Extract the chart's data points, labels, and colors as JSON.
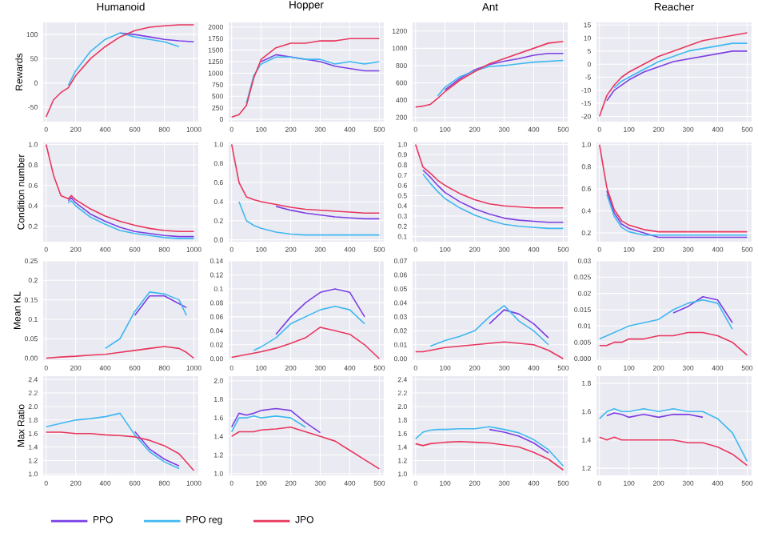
{
  "chart_data": [
    {
      "type": "line",
      "title": "Humanoid",
      "ylabel": "Rewards",
      "grid": true,
      "x": [
        0,
        50,
        100,
        150,
        200,
        300,
        400,
        500,
        600,
        700,
        800,
        900,
        1000
      ],
      "xlim": [
        -20,
        1030
      ],
      "xticks": [
        0,
        200,
        400,
        600,
        800,
        1000
      ],
      "ylim": [
        -80,
        125
      ],
      "yticks": [
        -50,
        0,
        50,
        100
      ],
      "series": [
        {
          "color": "#7b3fe4",
          "values": [
            null,
            null,
            null,
            null,
            null,
            null,
            null,
            103,
            100,
            95,
            90,
            87,
            85
          ]
        },
        {
          "color": "#3fb8f0",
          "values": [
            null,
            null,
            null,
            -5,
            25,
            65,
            90,
            103,
            95,
            90,
            85,
            75,
            null
          ]
        },
        {
          "color": "#e8365d",
          "values": [
            -70,
            -35,
            -20,
            -10,
            15,
            50,
            75,
            95,
            108,
            115,
            118,
            120,
            120
          ]
        }
      ]
    },
    {
      "type": "line",
      "title": "Hopper",
      "grid": true,
      "x": [
        0,
        25,
        50,
        75,
        100,
        150,
        200,
        250,
        300,
        350,
        400,
        450,
        500
      ],
      "xlim": [
        -10,
        515
      ],
      "xticks": [
        0,
        100,
        200,
        300,
        400,
        500
      ],
      "ylim": [
        -50,
        2100
      ],
      "yticks": [
        0,
        250,
        500,
        750,
        1000,
        1250,
        1500,
        1750,
        2000
      ],
      "series": [
        {
          "color": "#7b3fe4",
          "values": [
            null,
            null,
            null,
            null,
            1250,
            1400,
            1350,
            1300,
            1250,
            1150,
            1100,
            1050,
            1050
          ]
        },
        {
          "color": "#3fb8f0",
          "values": [
            null,
            null,
            350,
            950,
            1200,
            1350,
            1350,
            1300,
            1300,
            1200,
            1250,
            1200,
            1250
          ]
        },
        {
          "color": "#e8365d",
          "values": [
            50,
            100,
            300,
            900,
            1300,
            1550,
            1650,
            1650,
            1700,
            1700,
            1750,
            1750,
            1750
          ]
        }
      ]
    },
    {
      "type": "line",
      "title": "Ant",
      "grid": true,
      "x": [
        0,
        25,
        50,
        75,
        100,
        150,
        200,
        250,
        300,
        350,
        400,
        450,
        500
      ],
      "xlim": [
        -10,
        515
      ],
      "xticks": [
        0,
        100,
        200,
        300,
        400,
        500
      ],
      "ylim": [
        150,
        1300
      ],
      "yticks": [
        200,
        400,
        600,
        800,
        1000,
        1200
      ],
      "series": [
        {
          "color": "#7b3fe4",
          "values": [
            null,
            null,
            null,
            null,
            520,
            650,
            750,
            810,
            850,
            880,
            920,
            940,
            940
          ]
        },
        {
          "color": "#3fb8f0",
          "values": [
            null,
            null,
            null,
            450,
            550,
            670,
            740,
            790,
            800,
            820,
            840,
            850,
            860
          ]
        },
        {
          "color": "#e8365d",
          "values": [
            320,
            330,
            350,
            420,
            500,
            630,
            730,
            820,
            880,
            940,
            1000,
            1060,
            1080
          ]
        }
      ]
    },
    {
      "type": "line",
      "title": "Reacher",
      "grid": true,
      "x": [
        0,
        25,
        50,
        75,
        100,
        150,
        200,
        250,
        300,
        350,
        400,
        450,
        500
      ],
      "xlim": [
        -10,
        515
      ],
      "xticks": [
        0,
        100,
        200,
        300,
        400,
        500
      ],
      "ylim": [
        -22,
        16
      ],
      "yticks": [
        -20,
        -15,
        -10,
        -5,
        0,
        5,
        10,
        15
      ],
      "series": [
        {
          "color": "#7b3fe4",
          "values": [
            null,
            -14,
            -10,
            -8,
            -6,
            -3,
            -1,
            1,
            2,
            3,
            4,
            5,
            5
          ]
        },
        {
          "color": "#3fb8f0",
          "values": [
            null,
            null,
            -9,
            -6.5,
            -5,
            -2,
            1,
            3,
            5,
            6,
            7,
            8,
            8
          ]
        },
        {
          "color": "#e8365d",
          "values": [
            -20,
            -12,
            -8,
            -5,
            -3,
            0,
            3,
            5,
            7,
            9,
            10,
            11,
            12
          ]
        }
      ]
    },
    {
      "type": "line",
      "ylabel": "Condition number",
      "grid": true,
      "x": [
        0,
        50,
        100,
        150,
        170,
        200,
        300,
        400,
        500,
        600,
        700,
        800,
        900,
        1000
      ],
      "xlim": [
        -20,
        1030
      ],
      "xticks": [
        0,
        200,
        400,
        600,
        800,
        1000
      ],
      "ylim": [
        0.05,
        1.02
      ],
      "yticks": [
        0.2,
        0.4,
        0.6,
        0.8,
        {
          "value": 1.0,
          "label": "1.0"
        }
      ],
      "series": [
        {
          "color": "#7b3fe4",
          "values": [
            null,
            null,
            null,
            0.45,
            0.48,
            0.43,
            0.32,
            0.25,
            0.19,
            0.15,
            0.13,
            0.11,
            0.1,
            0.1
          ]
        },
        {
          "color": "#3fb8f0",
          "values": [
            null,
            null,
            null,
            0.43,
            0.45,
            0.4,
            0.29,
            0.22,
            0.16,
            0.13,
            0.11,
            0.09,
            0.08,
            0.08
          ]
        },
        {
          "color": "#e8365d",
          "values": [
            1.0,
            0.7,
            0.5,
            0.47,
            0.5,
            0.46,
            0.37,
            0.3,
            0.25,
            0.21,
            0.18,
            0.16,
            0.15,
            0.15
          ]
        }
      ]
    },
    {
      "type": "line",
      "grid": true,
      "x": [
        0,
        25,
        50,
        75,
        100,
        150,
        200,
        250,
        300,
        350,
        400,
        450,
        500
      ],
      "xlim": [
        -10,
        515
      ],
      "xticks": [
        0,
        100,
        200,
        300,
        400,
        500
      ],
      "ylim": [
        -0.02,
        1.02
      ],
      "yticks": [
        {
          "value": 0,
          "label": "0.0"
        },
        0.2,
        0.4,
        0.6,
        0.8,
        {
          "value": 1.0,
          "label": "1.0"
        }
      ],
      "series": [
        {
          "color": "#7b3fe4",
          "values": [
            null,
            null,
            null,
            null,
            null,
            0.35,
            0.31,
            0.28,
            0.26,
            0.24,
            0.23,
            0.22,
            0.22
          ]
        },
        {
          "color": "#3fb8f0",
          "values": [
            null,
            0.4,
            0.2,
            0.15,
            0.12,
            0.08,
            0.06,
            0.05,
            0.05,
            0.05,
            0.05,
            0.05,
            0.05
          ]
        },
        {
          "color": "#e8365d",
          "values": [
            1.0,
            0.6,
            0.45,
            0.42,
            0.4,
            0.37,
            0.34,
            0.32,
            0.31,
            0.3,
            0.29,
            0.28,
            0.28
          ]
        }
      ]
    },
    {
      "type": "line",
      "grid": true,
      "x": [
        0,
        25,
        50,
        75,
        100,
        150,
        200,
        250,
        300,
        350,
        400,
        450,
        500
      ],
      "xlim": [
        -10,
        515
      ],
      "xticks": [
        0,
        100,
        200,
        300,
        400,
        500
      ],
      "ylim": [
        0.05,
        1.02
      ],
      "yticks": [
        0.1,
        0.2,
        0.3,
        0.4,
        0.5,
        0.6,
        0.7,
        0.8,
        0.9,
        {
          "value": 1.0,
          "label": "1.0"
        }
      ],
      "series": [
        {
          "color": "#7b3fe4",
          "values": [
            null,
            0.75,
            0.68,
            0.6,
            0.53,
            0.44,
            0.37,
            0.32,
            0.28,
            0.26,
            0.25,
            0.24,
            0.24
          ]
        },
        {
          "color": "#3fb8f0",
          "values": [
            null,
            0.71,
            0.62,
            0.54,
            0.47,
            0.38,
            0.31,
            0.26,
            0.22,
            0.2,
            0.19,
            0.18,
            0.18
          ]
        },
        {
          "color": "#e8365d",
          "values": [
            1.0,
            0.78,
            0.72,
            0.65,
            0.6,
            0.52,
            0.46,
            0.42,
            0.4,
            0.39,
            0.38,
            0.38,
            0.38
          ]
        }
      ]
    },
    {
      "type": "line",
      "grid": true,
      "x": [
        0,
        25,
        50,
        75,
        100,
        150,
        200,
        250,
        300,
        350,
        400,
        450,
        500
      ],
      "xlim": [
        -10,
        515
      ],
      "xticks": [
        0,
        100,
        200,
        300,
        400,
        500
      ],
      "ylim": [
        0.12,
        1.02
      ],
      "yticks": [
        0.2,
        0.4,
        0.6,
        0.8,
        {
          "value": 1.0,
          "label": "1.0"
        }
      ],
      "series": [
        {
          "color": "#7b3fe4",
          "values": [
            null,
            0.58,
            0.38,
            0.28,
            0.24,
            0.2,
            0.16,
            0.16,
            0.16,
            0.16,
            0.16,
            0.16,
            0.16
          ]
        },
        {
          "color": "#3fb8f0",
          "values": [
            null,
            0.55,
            0.35,
            0.25,
            0.21,
            0.18,
            0.18,
            0.18,
            0.18,
            0.18,
            0.18,
            0.18,
            0.18
          ]
        },
        {
          "color": "#e8365d",
          "values": [
            1.0,
            0.61,
            0.41,
            0.31,
            0.27,
            0.23,
            0.21,
            0.21,
            0.21,
            0.21,
            0.21,
            0.21,
            0.21
          ]
        }
      ]
    },
    {
      "type": "line",
      "ylabel": "Mean KL",
      "grid": true,
      "x": [
        0,
        100,
        200,
        300,
        400,
        500,
        600,
        700,
        800,
        900,
        950,
        1000
      ],
      "xlim": [
        -20,
        1030
      ],
      "xticks": [
        0,
        200,
        400,
        600,
        800,
        1000
      ],
      "ylim": [
        -0.005,
        0.25
      ],
      "yticks": [
        {
          "value": 0,
          "label": "0.00"
        },
        0.05,
        0.1,
        0.15,
        0.2,
        0.25
      ],
      "series": [
        {
          "color": "#7b3fe4",
          "values": [
            null,
            null,
            null,
            null,
            null,
            null,
            0.11,
            0.16,
            0.16,
            0.14,
            0.13,
            null
          ]
        },
        {
          "color": "#3fb8f0",
          "values": [
            null,
            null,
            null,
            null,
            0.025,
            0.05,
            0.12,
            0.17,
            0.165,
            0.15,
            0.11,
            null
          ]
        },
        {
          "color": "#e8365d",
          "values": [
            0.0,
            0.003,
            0.005,
            0.008,
            0.01,
            0.015,
            0.02,
            0.025,
            0.03,
            0.025,
            0.015,
            0.0
          ]
        }
      ]
    },
    {
      "type": "line",
      "grid": true,
      "x": [
        0,
        25,
        50,
        75,
        100,
        150,
        200,
        250,
        300,
        350,
        400,
        450,
        500
      ],
      "xlim": [
        -10,
        515
      ],
      "xticks": [
        0,
        100,
        200,
        300,
        400,
        500
      ],
      "ylim": [
        -0.002,
        0.14
      ],
      "yticks": [
        {
          "value": 0,
          "label": "0.00"
        },
        0.02,
        0.04,
        0.06,
        0.08,
        0.1,
        0.12,
        0.14
      ],
      "series": [
        {
          "color": "#7b3fe4",
          "values": [
            null,
            null,
            null,
            null,
            null,
            0.035,
            0.06,
            0.08,
            0.095,
            0.1,
            0.095,
            0.06,
            null
          ]
        },
        {
          "color": "#3fb8f0",
          "values": [
            null,
            null,
            null,
            0.012,
            0.017,
            0.03,
            0.05,
            0.06,
            0.07,
            0.075,
            0.07,
            0.05,
            null
          ]
        },
        {
          "color": "#e8365d",
          "values": [
            0.002,
            0.004,
            0.006,
            0.008,
            0.01,
            0.015,
            0.022,
            0.03,
            0.045,
            0.04,
            0.035,
            0.02,
            0.0
          ]
        }
      ]
    },
    {
      "type": "line",
      "grid": true,
      "x": [
        0,
        25,
        50,
        75,
        100,
        150,
        200,
        250,
        300,
        350,
        400,
        450,
        500
      ],
      "xlim": [
        -10,
        515
      ],
      "xticks": [
        0,
        100,
        200,
        300,
        400,
        500
      ],
      "ylim": [
        -0.001,
        0.07
      ],
      "yticks": [
        {
          "value": 0,
          "label": "0.00"
        },
        0.01,
        0.02,
        0.03,
        0.04,
        0.05,
        0.06,
        0.07
      ],
      "series": [
        {
          "color": "#7b3fe4",
          "values": [
            null,
            null,
            null,
            null,
            null,
            null,
            null,
            0.025,
            0.035,
            0.032,
            0.025,
            0.015,
            null
          ]
        },
        {
          "color": "#3fb8f0",
          "values": [
            null,
            null,
            0.009,
            0.011,
            0.013,
            0.016,
            0.02,
            0.03,
            0.038,
            0.027,
            0.02,
            0.01,
            null
          ]
        },
        {
          "color": "#e8365d",
          "values": [
            0.005,
            0.005,
            0.006,
            0.007,
            0.008,
            0.009,
            0.01,
            0.011,
            0.012,
            0.011,
            0.01,
            0.006,
            0.0
          ]
        }
      ]
    },
    {
      "type": "line",
      "grid": true,
      "x": [
        0,
        25,
        50,
        75,
        100,
        150,
        200,
        250,
        300,
        350,
        400,
        450,
        500
      ],
      "xlim": [
        -10,
        515
      ],
      "xticks": [
        0,
        100,
        200,
        300,
        400,
        500
      ],
      "ylim": [
        -0.0005,
        0.03
      ],
      "yticks": [
        {
          "value": 0,
          "label": "0.000"
        },
        0.005,
        0.01,
        0.015,
        0.02,
        0.025,
        0.03
      ],
      "series": [
        {
          "color": "#7b3fe4",
          "values": [
            null,
            null,
            null,
            null,
            null,
            null,
            null,
            0.014,
            0.016,
            0.019,
            0.018,
            0.011,
            null
          ]
        },
        {
          "color": "#3fb8f0",
          "values": [
            0.006,
            0.007,
            0.008,
            0.009,
            0.01,
            0.011,
            0.012,
            0.015,
            0.017,
            0.018,
            0.017,
            0.009,
            null
          ]
        },
        {
          "color": "#e8365d",
          "values": [
            0.004,
            0.004,
            0.005,
            0.005,
            0.006,
            0.006,
            0.007,
            0.007,
            0.008,
            0.008,
            0.007,
            0.005,
            0.001
          ]
        }
      ]
    },
    {
      "type": "line",
      "ylabel": "Max Ratio",
      "grid": true,
      "legend": "bottom",
      "x": [
        0,
        100,
        200,
        300,
        400,
        500,
        600,
        700,
        800,
        900,
        1000
      ],
      "xlim": [
        -20,
        1030
      ],
      "xticks": [
        0,
        200,
        400,
        600,
        800,
        1000
      ],
      "ylim": [
        0.98,
        2.45
      ],
      "yticks": [
        {
          "value": 1.0,
          "label": "1.0"
        },
        1.2,
        1.4,
        1.6,
        1.8,
        {
          "value": 2.0,
          "label": "2.0"
        },
        2.2,
        2.4
      ],
      "series": [
        {
          "name": "PPO",
          "color": "#7b3fe4",
          "values": [
            null,
            null,
            null,
            null,
            null,
            null,
            1.63,
            1.37,
            1.22,
            1.12,
            null
          ]
        },
        {
          "name": "PPO reg",
          "color": "#3fb8f0",
          "values": [
            1.7,
            1.75,
            1.8,
            1.82,
            1.85,
            1.9,
            1.58,
            1.33,
            1.18,
            1.08,
            null
          ]
        },
        {
          "name": "JPO",
          "color": "#e8365d",
          "values": [
            1.62,
            1.62,
            1.6,
            1.6,
            1.58,
            1.57,
            1.55,
            1.5,
            1.42,
            1.3,
            1.05
          ]
        }
      ]
    },
    {
      "type": "line",
      "grid": true,
      "x": [
        0,
        25,
        50,
        75,
        100,
        150,
        200,
        250,
        300,
        350,
        400,
        450,
        500
      ],
      "xlim": [
        -10,
        515
      ],
      "xticks": [
        0,
        100,
        200,
        300,
        400,
        500
      ],
      "ylim": [
        0.98,
        2.05
      ],
      "yticks": [
        {
          "value": 1.0,
          "label": "1.0"
        },
        1.2,
        1.4,
        1.6,
        1.8,
        {
          "value": 2.0,
          "label": "2.0"
        }
      ],
      "series": [
        {
          "color": "#7b3fe4",
          "values": [
            1.5,
            1.65,
            1.63,
            1.65,
            1.68,
            1.7,
            1.68,
            1.55,
            1.44,
            null,
            null,
            null,
            null
          ]
        },
        {
          "color": "#3fb8f0",
          "values": [
            1.45,
            1.6,
            1.6,
            1.62,
            1.6,
            1.62,
            1.6,
            1.5,
            null,
            null,
            null,
            null,
            null
          ]
        },
        {
          "color": "#e8365d",
          "values": [
            1.4,
            1.45,
            1.45,
            1.45,
            1.47,
            1.48,
            1.5,
            1.45,
            1.4,
            1.35,
            1.25,
            1.15,
            1.05
          ]
        }
      ]
    },
    {
      "type": "line",
      "grid": true,
      "x": [
        0,
        25,
        50,
        75,
        100,
        150,
        200,
        250,
        300,
        350,
        400,
        450,
        500
      ],
      "xlim": [
        -10,
        515
      ],
      "xticks": [
        0,
        100,
        200,
        300,
        400,
        500
      ],
      "ylim": [
        0.98,
        2.45
      ],
      "yticks": [
        {
          "value": 1.0,
          "label": "1.0"
        },
        1.2,
        1.4,
        1.6,
        1.8,
        {
          "value": 2.0,
          "label": "2.0"
        },
        2.2,
        2.4
      ],
      "series": [
        {
          "color": "#7b3fe4",
          "values": [
            null,
            null,
            null,
            null,
            null,
            null,
            null,
            1.66,
            1.62,
            1.56,
            1.46,
            1.31,
            null
          ]
        },
        {
          "color": "#3fb8f0",
          "values": [
            1.52,
            1.62,
            1.65,
            1.66,
            1.66,
            1.67,
            1.67,
            1.7,
            1.66,
            1.61,
            1.51,
            1.36,
            1.12
          ]
        },
        {
          "color": "#e8365d",
          "values": [
            1.45,
            1.42,
            1.45,
            1.46,
            1.47,
            1.48,
            1.47,
            1.46,
            1.43,
            1.4,
            1.32,
            1.22,
            1.06
          ]
        }
      ]
    },
    {
      "type": "line",
      "grid": true,
      "x": [
        0,
        25,
        50,
        75,
        100,
        150,
        200,
        250,
        300,
        350,
        400,
        450,
        500
      ],
      "xlim": [
        -10,
        515
      ],
      "xticks": [
        0,
        100,
        200,
        300,
        400,
        500
      ],
      "ylim": [
        1.15,
        1.85
      ],
      "yticks": [
        1.2,
        1.4,
        1.6,
        1.8
      ],
      "series": [
        {
          "color": "#7b3fe4",
          "values": [
            null,
            1.57,
            1.59,
            1.58,
            1.56,
            1.58,
            1.56,
            1.58,
            1.58,
            1.56,
            null,
            null,
            null
          ]
        },
        {
          "color": "#3fb8f0",
          "values": [
            1.55,
            1.6,
            1.62,
            1.6,
            1.6,
            1.62,
            1.6,
            1.62,
            1.6,
            1.6,
            1.55,
            1.45,
            1.25
          ]
        },
        {
          "color": "#e8365d",
          "values": [
            1.42,
            1.4,
            1.42,
            1.4,
            1.4,
            1.4,
            1.4,
            1.4,
            1.38,
            1.38,
            1.35,
            1.3,
            1.22
          ]
        }
      ]
    }
  ]
}
